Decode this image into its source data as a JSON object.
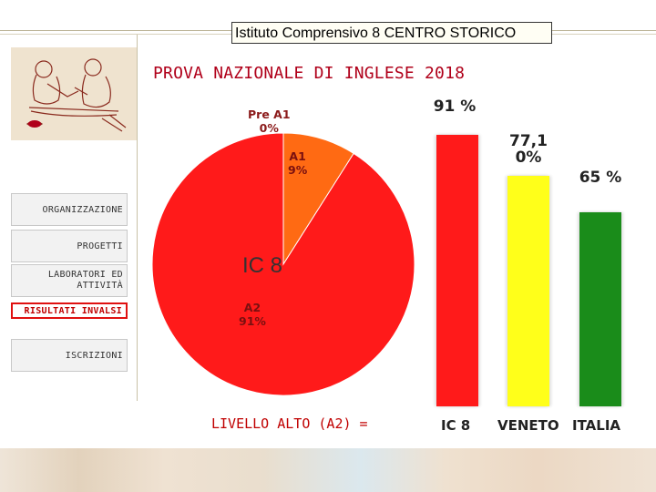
{
  "header": {
    "school_name": "Istituto Comprensivo 8 CENTRO STORICO"
  },
  "sidebar": {
    "items": [
      {
        "label": "ORGANIZZAZIONE"
      },
      {
        "label": "PROGETTI"
      },
      {
        "label": "LABORATORI ED ATTIVITÀ"
      },
      {
        "label": "RISULTATI INVALSI",
        "active": true
      },
      {
        "label": "ISCRIZIONI"
      }
    ]
  },
  "main": {
    "title": "PROVA NAZIONALE DI INGLESE 2018",
    "footer_label": "LIVELLO ALTO (A2) ="
  },
  "colors": {
    "accent": "#b0001a",
    "red": "#ff1a1a",
    "orange": "#ff6a13",
    "yellow": "#ffff1a",
    "green": "#1a8c1a"
  },
  "chart_data": [
    {
      "type": "pie",
      "title": "IC 8",
      "slices": [
        {
          "label": "Pre A1",
          "value": 0,
          "display": "0%",
          "color": "#ff6a13"
        },
        {
          "label": "A1",
          "value": 9,
          "display": "9%",
          "color": "#ff6a13"
        },
        {
          "label": "A2",
          "value": 91,
          "display": "91%",
          "color": "#ff1a1a"
        }
      ]
    },
    {
      "type": "bar",
      "categories": [
        "IC 8",
        "VENETO",
        "ITALIA"
      ],
      "values": [
        91,
        77.1,
        65
      ],
      "value_labels": [
        "91 %",
        "77,1 0%",
        "65 %"
      ],
      "colors": [
        "#ff1a1a",
        "#ffff1a",
        "#1a8c1a"
      ],
      "ylim": [
        0,
        100
      ]
    }
  ]
}
